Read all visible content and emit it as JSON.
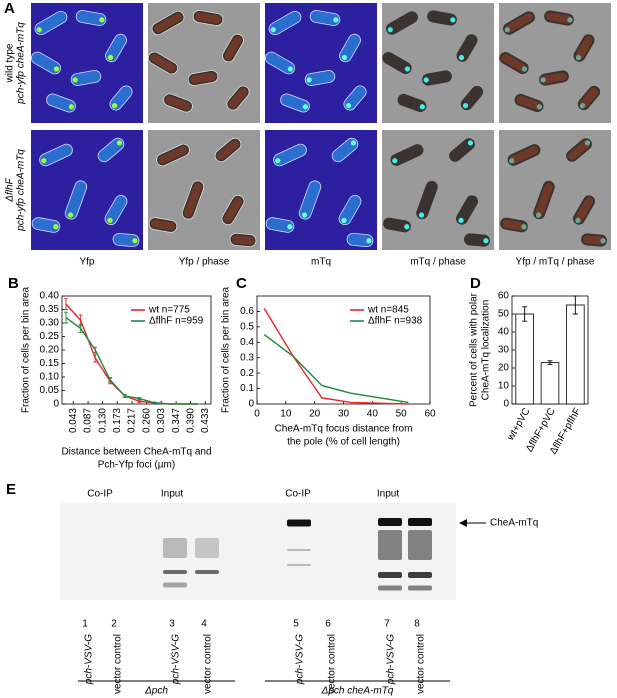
{
  "panel_a": {
    "label": "A",
    "row_labels": [
      [
        "wild type",
        "pch-yfp cheA-mTq"
      ],
      [
        "ΔflhF",
        "pch-yfp cheA-mTq"
      ]
    ],
    "column_labels": [
      "Yfp",
      "Yfp / phase",
      "mTq",
      "mTq / phase",
      "Yfp / mTq / phase"
    ]
  },
  "chart_data": [
    {
      "type": "line",
      "panel_label": "B",
      "ylabel": "Fraction of cells per bin area",
      "xlabel": [
        "Distance between CheA-mTq and",
        "Pch-Yfp foci (µm)"
      ],
      "x": [
        0.0217,
        0.065,
        0.1083,
        0.1517,
        0.195,
        0.2383,
        0.2817,
        0.325,
        0.3683,
        0.4117
      ],
      "series": [
        {
          "name": "wt n=775",
          "color": "#e8262a",
          "values": [
            0.37,
            0.31,
            0.17,
            0.085,
            0.03,
            0.01,
            0.005,
            0,
            0,
            0
          ],
          "errors": [
            0.02,
            0.02,
            0.015,
            0.01,
            0.005,
            0.004,
            0.002,
            0,
            0,
            0
          ]
        },
        {
          "name": "ΔflhF n=959",
          "color": "#1e8a3c",
          "values": [
            0.32,
            0.28,
            0.2,
            0.09,
            0.03,
            0.02,
            0.005,
            0,
            0,
            0
          ],
          "errors": [
            0.02,
            0.015,
            0.01,
            0.008,
            0.005,
            0.004,
            0.002,
            0,
            0,
            0
          ]
        }
      ],
      "xlim": [
        0.01,
        0.45
      ],
      "xticks": [
        0.043,
        0.087,
        {
          "value": 0.13,
          "label": "0.130"
        },
        0.173,
        0.217,
        {
          "value": 0.26,
          "label": "0.260"
        },
        0.303,
        0.347,
        {
          "value": 0.39,
          "label": "0.390"
        },
        0.433
      ],
      "ylim": [
        0,
        0.4
      ],
      "yticks": [
        0,
        0.05,
        {
          "value": 0.1,
          "label": "0.10"
        },
        0.15,
        {
          "value": 0.2,
          "label": "0.20"
        },
        0.25,
        {
          "value": 0.3,
          "label": "0.30"
        },
        0.35,
        {
          "value": 0.4,
          "label": "0.40"
        }
      ],
      "legend": "upper right",
      "x_tick_rotation": true
    },
    {
      "type": "line",
      "panel_label": "C",
      "ylabel": "Fraction of cells per bin area",
      "xlabel": [
        "CheA-mTq focus distance from",
        "the pole (% of cell length)"
      ],
      "x": [
        2.5,
        12.5,
        22.5,
        32.5,
        42.5,
        52.5
      ],
      "series": [
        {
          "name": "wt n=845",
          "color": "#e8262a",
          "values": [
            0.62,
            0.31,
            0.04,
            0.01,
            0.005,
            0
          ]
        },
        {
          "name": "ΔflhF n=938",
          "color": "#1e8a3c",
          "values": [
            0.45,
            0.31,
            0.12,
            0.07,
            0.04,
            0.01
          ]
        }
      ],
      "xlim": [
        0,
        60
      ],
      "xticks": [
        0,
        10,
        20,
        30,
        40,
        50,
        60
      ],
      "ylim": [
        0,
        0.7
      ],
      "yticks": [
        0,
        0.1,
        0.2,
        0.3,
        0.4,
        0.5,
        0.6
      ],
      "legend": "upper right"
    },
    {
      "type": "bar",
      "panel_label": "D",
      "ylabel": [
        "Percent of cells with polar",
        "CheA-mTq localization"
      ],
      "categories": [
        "wt+pVC",
        "ΔflhF+pVC",
        "ΔflhF+pflhF"
      ],
      "values": [
        50,
        23,
        55
      ],
      "errors": [
        4,
        1,
        5
      ],
      "color": "#ffffff",
      "ylim": [
        0,
        60
      ],
      "yticks": [
        0,
        10,
        20,
        30,
        40,
        50,
        60
      ]
    }
  ],
  "panel_e": {
    "label": "E",
    "headers": [
      "Co-IP",
      "Input",
      "Co-IP",
      "Input"
    ],
    "band_label": "CheA-mTq",
    "lanes": [
      {
        "number": "1",
        "label": "pch-VSV-G"
      },
      {
        "number": "2",
        "label": "vector control"
      },
      {
        "number": "3",
        "label": "pch-VSV-G"
      },
      {
        "number": "4",
        "label": "vector control"
      },
      {
        "number": "5",
        "label": "pch-VSV-G"
      },
      {
        "number": "6",
        "label": "vector control"
      },
      {
        "number": "7",
        "label": "pch-VSV-G"
      },
      {
        "number": "8",
        "label": "vector control"
      }
    ],
    "groups": [
      "Δpch",
      "Δpch cheA-mTq"
    ]
  }
}
